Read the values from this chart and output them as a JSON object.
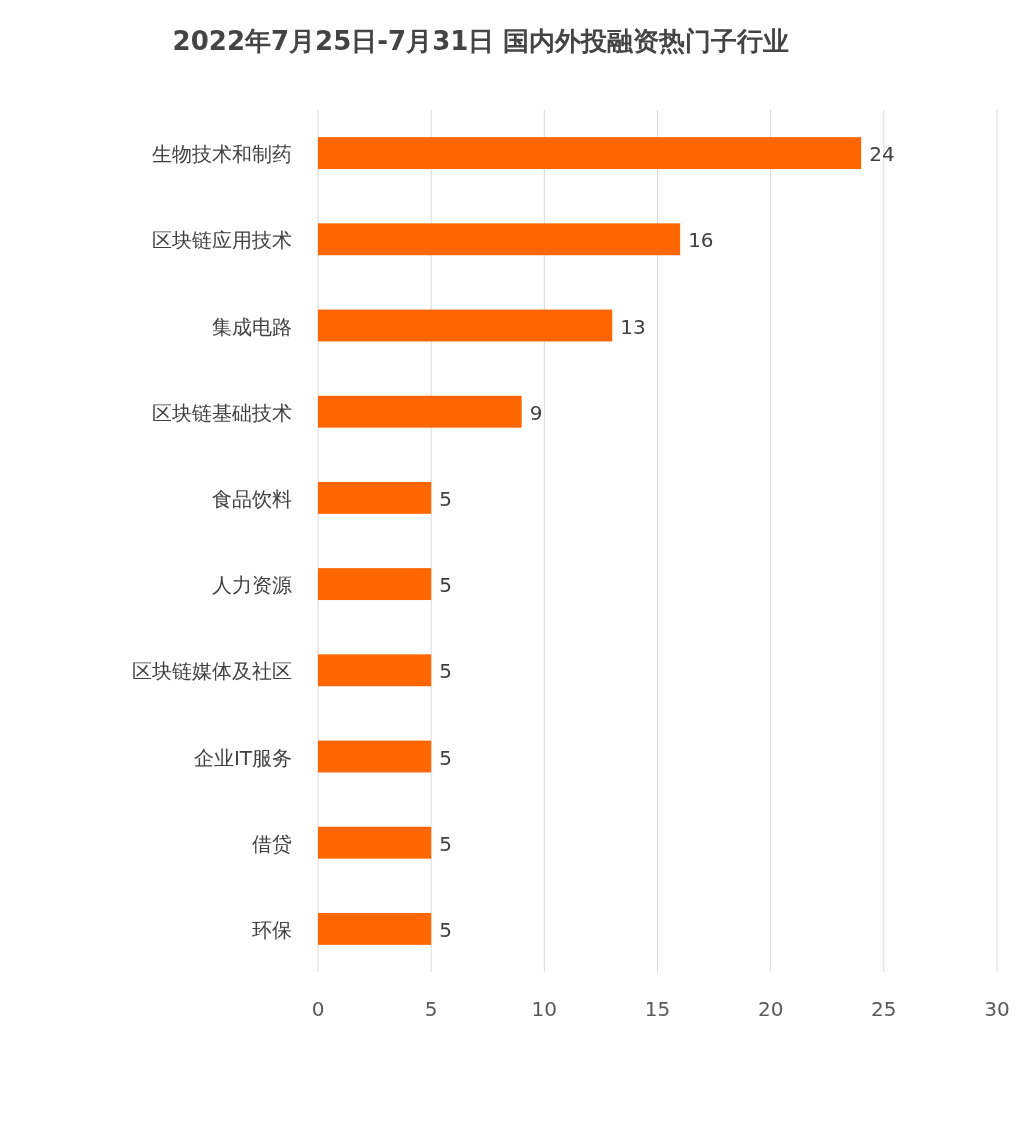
{
  "chart_data": {
    "type": "bar",
    "orientation": "horizontal",
    "title": "2022年7月25日-7月31日 国内外投融资热门子行业",
    "categories": [
      "生物技术和制药",
      "区块链应用技术",
      "集成电路",
      "区块链基础技术",
      "食品饮料",
      "人力资源",
      "区块链媒体及社区",
      "企业IT服务",
      "借贷",
      "环保"
    ],
    "values": [
      24,
      16,
      13,
      9,
      5,
      5,
      5,
      5,
      5,
      5
    ],
    "color": "#ff6600",
    "xlim": [
      0,
      30
    ],
    "xticks": [
      0,
      5,
      10,
      15,
      20,
      25,
      30
    ],
    "grid": "x",
    "data_labels": true
  }
}
